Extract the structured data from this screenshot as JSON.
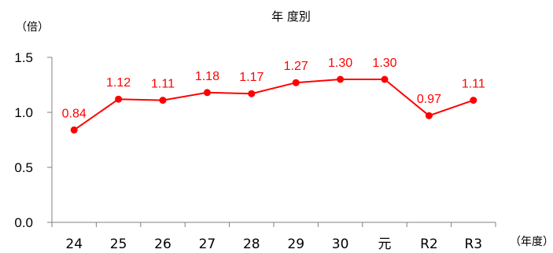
{
  "chart_data": {
    "type": "line",
    "title": "年 度別",
    "ylabel": "（倍）",
    "xlabel": "（年度）",
    "categories": [
      "24",
      "25",
      "26",
      "27",
      "28",
      "29",
      "30",
      "元",
      "R2",
      "R3"
    ],
    "series": [
      {
        "values": [
          0.84,
          1.12,
          1.11,
          1.18,
          1.17,
          1.27,
          1.3,
          1.3,
          0.97,
          1.11
        ],
        "labels": [
          "0.84",
          "1.12",
          "1.11",
          "1.18",
          "1.17",
          "1.27",
          "1.30",
          "1.30",
          "0.97",
          "1.11"
        ],
        "color": "#ff0000"
      }
    ],
    "ylim": [
      0.0,
      1.5
    ],
    "yticks": [
      "0.0",
      "0.5",
      "1.0",
      "1.5"
    ],
    "grid": false,
    "legend": "none"
  }
}
